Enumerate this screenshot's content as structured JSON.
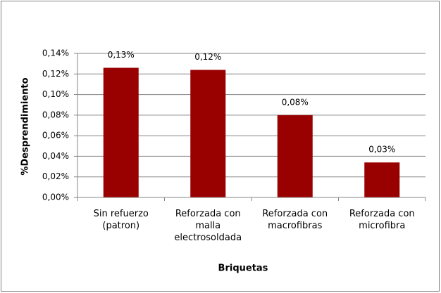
{
  "chart_data": {
    "type": "bar",
    "x_label": "Briquetas",
    "y_label": "%Desprendimiento",
    "categories": [
      "Sin refuerzo (patron)",
      "Reforzada con malla electrosoldada",
      "Reforzada con macrofibras",
      "Reforzada con microfibra"
    ],
    "values": [
      0.126,
      0.124,
      0.08,
      0.034
    ],
    "value_labels": [
      "0,13%",
      "0,12%",
      "0,08%",
      "0,03%"
    ],
    "color": "#990000",
    "ylim": [
      0,
      0.14
    ],
    "yticks": [
      {
        "value": 0,
        "label": "0,00%"
      },
      {
        "value": 0.02,
        "label": "0,02%"
      },
      {
        "value": 0.04,
        "label": "0,04%"
      },
      {
        "value": 0.06,
        "label": "0,06%"
      },
      {
        "value": 0.08,
        "label": "0,08%"
      },
      {
        "value": 0.1,
        "label": "0,10%"
      },
      {
        "value": 0.12,
        "label": "0,12%"
      },
      {
        "value": 0.14,
        "label": "0,14%"
      }
    ],
    "grid": true
  }
}
